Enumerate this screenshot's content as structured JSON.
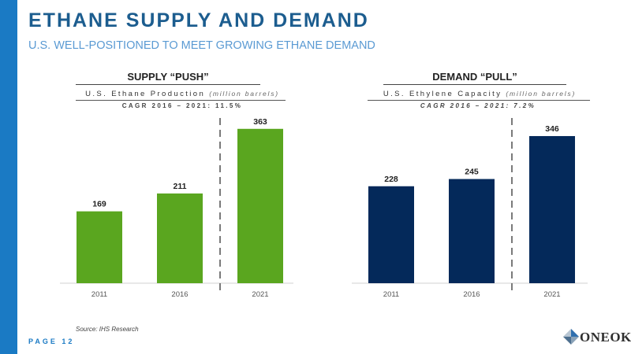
{
  "title": "ETHANE SUPPLY AND DEMAND",
  "subtitle": "U.S. WELL-POSITIONED TO MEET GROWING ETHANE DEMAND",
  "source": "Source: IHS Research",
  "page": "PAGE 12",
  "logo_text": "ONEOK",
  "colors": {
    "accent": "#1a7ac4",
    "supply": "#5aa61f",
    "demand": "#04295a"
  },
  "left_panel": {
    "heading": "SUPPLY “PUSH”",
    "metric": "U.S. Ethane Production",
    "unit": "(million barrels)",
    "cagr": "CAGR 2016 – 2021: 11.5%"
  },
  "right_panel": {
    "heading": "DEMAND “PULL”",
    "metric": "U.S. Ethylene Capacity",
    "unit": "(million barrels)",
    "cagr": "CAGR 2016 – 2021: 7.2%"
  },
  "chart_data": [
    {
      "type": "bar",
      "title": "U.S. Ethane Production (million barrels)",
      "categories": [
        "2011",
        "2016",
        "2021"
      ],
      "values": [
        169,
        211,
        363
      ],
      "data_labels": [
        "169",
        "211",
        "363"
      ],
      "ylim": [
        0,
        370
      ],
      "grid": false,
      "divider_before_category": "2021"
    },
    {
      "type": "bar",
      "title": "U.S. Ethylene Capacity (million barrels)",
      "categories": [
        "2011",
        "2016",
        "2021"
      ],
      "values": [
        228,
        245,
        346
      ],
      "data_labels": [
        "228",
        "245",
        "346"
      ],
      "ylim": [
        0,
        370
      ],
      "grid": false,
      "divider_before_category": "2021"
    }
  ]
}
